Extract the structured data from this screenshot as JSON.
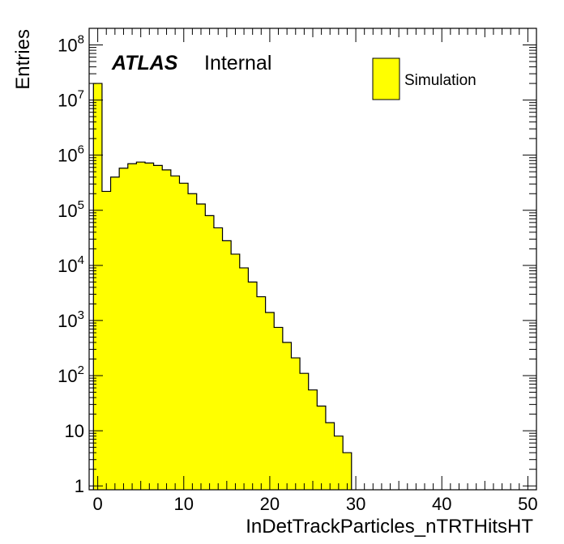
{
  "chart_data": {
    "type": "bar",
    "subtype": "histogram",
    "xlabel": "InDetTrackParticles_nTRTHitsHT",
    "ylabel": "Entries",
    "atlas_label": "ATLAS",
    "atlas_status": "Internal",
    "legend": {
      "entries": [
        "Simulation"
      ],
      "placement": "top-right"
    },
    "fill_color": "#ffff00",
    "line_color": "#000000",
    "xlim": [
      -1,
      51
    ],
    "ylim": [
      0.85,
      200000000
    ],
    "yscale": "log",
    "bin_width": 1,
    "xticks": [
      {
        "value": 0,
        "label": "0"
      },
      {
        "value": 10,
        "label": "10"
      },
      {
        "value": 20,
        "label": "20"
      },
      {
        "value": 30,
        "label": "30"
      },
      {
        "value": 40,
        "label": "40"
      },
      {
        "value": 50,
        "label": "50"
      }
    ],
    "yticks": [
      {
        "value": 1,
        "base": "1",
        "exp": ""
      },
      {
        "value": 10,
        "base": "10",
        "exp": ""
      },
      {
        "value": 100,
        "base": "10",
        "exp": "2"
      },
      {
        "value": 1000,
        "base": "10",
        "exp": "3"
      },
      {
        "value": 10000,
        "base": "10",
        "exp": "4"
      },
      {
        "value": 100000,
        "base": "10",
        "exp": "5"
      },
      {
        "value": 1000000,
        "base": "10",
        "exp": "6"
      },
      {
        "value": 10000000,
        "base": "10",
        "exp": "7"
      },
      {
        "value": 100000000,
        "base": "10",
        "exp": "8"
      }
    ],
    "bin_edges_start": -0.5,
    "values": [
      20000000,
      220000,
      400000,
      580000,
      700000,
      750000,
      720000,
      650000,
      540000,
      420000,
      310000,
      200000,
      130000,
      80000,
      48000,
      28000,
      16000,
      9000,
      5000,
      2700,
      1400,
      750,
      400,
      210,
      110,
      55,
      28,
      14,
      8,
      4
    ]
  }
}
